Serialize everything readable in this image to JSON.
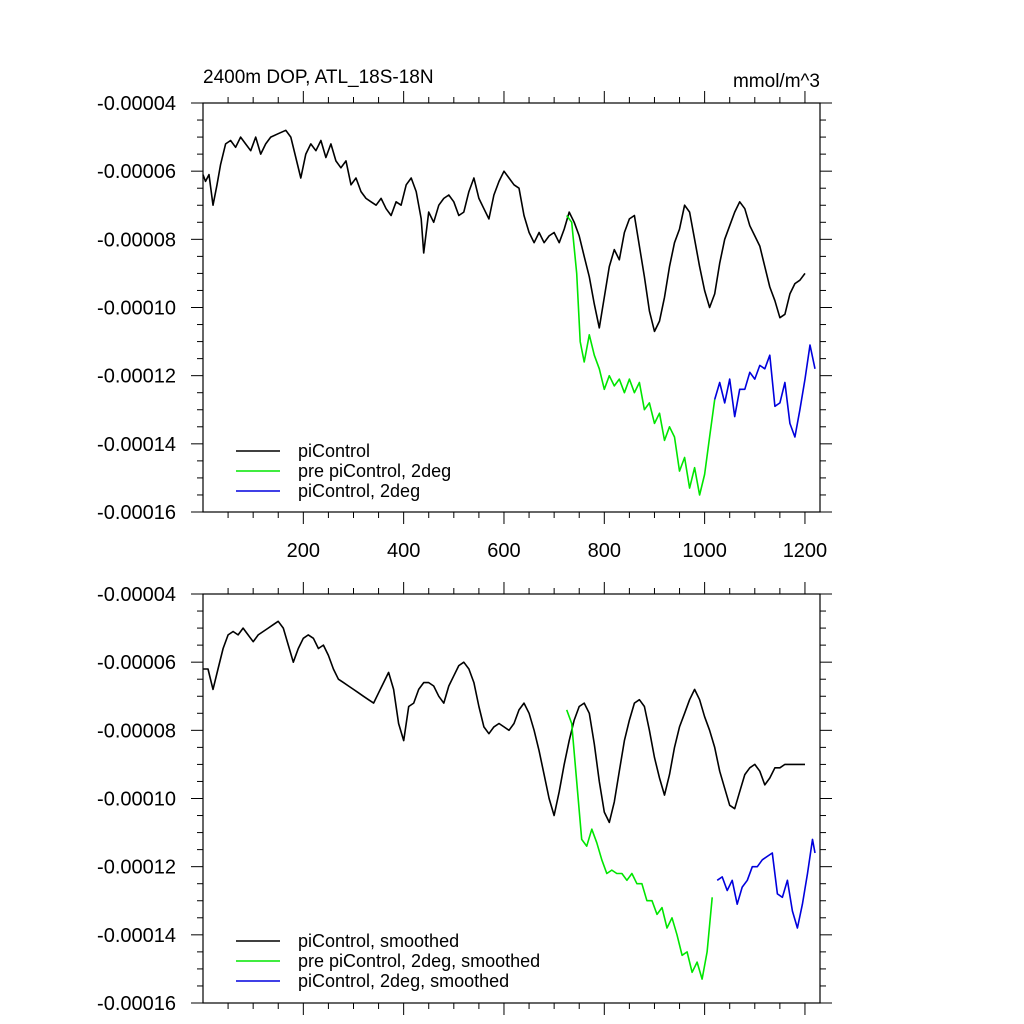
{
  "chart_data": [
    {
      "type": "line",
      "title_left": "2400m DOP, ATL_18S-18N",
      "title_right": "mmol/m^3",
      "xlim": [
        0,
        1230
      ],
      "ylim": [
        -0.00016,
        -4e-05
      ],
      "xticks": [
        200,
        400,
        600,
        800,
        1000,
        1200
      ],
      "xtick_labels": [
        "200",
        "400",
        "600",
        "800",
        "1000",
        "1200"
      ],
      "yticks": [
        -4e-05,
        -6e-05,
        -8e-05,
        -0.0001,
        -0.00012,
        -0.00014,
        -0.00016
      ],
      "ytick_labels": [
        "-0.00004",
        "-0.00006",
        "-0.00008",
        "-0.00010",
        "-0.00012",
        "-0.00014",
        "-0.00016"
      ],
      "legend_position": "bottom-left",
      "series": [
        {
          "name": "piControl",
          "color": "#000000",
          "x": [
            0,
            5,
            12,
            20,
            28,
            35,
            45,
            55,
            65,
            75,
            85,
            95,
            105,
            115,
            125,
            135,
            150,
            165,
            175,
            185,
            195,
            205,
            215,
            225,
            235,
            245,
            255,
            265,
            275,
            285,
            295,
            305,
            315,
            325,
            335,
            345,
            355,
            365,
            375,
            385,
            395,
            405,
            415,
            425,
            435,
            440,
            450,
            460,
            470,
            480,
            490,
            500,
            510,
            520,
            530,
            540,
            550,
            560,
            570,
            580,
            590,
            600,
            610,
            620,
            630,
            640,
            650,
            660,
            670,
            680,
            690,
            700,
            710,
            720,
            730,
            740,
            750,
            760,
            770,
            780,
            790,
            800,
            810,
            820,
            830,
            840,
            850,
            860,
            870,
            880,
            890,
            900,
            910,
            920,
            930,
            940,
            950,
            960,
            970,
            980,
            990,
            1000,
            1010,
            1020,
            1030,
            1040,
            1050,
            1060,
            1070,
            1080,
            1090,
            1100,
            1110,
            1120,
            1130,
            1140,
            1150,
            1160,
            1170,
            1180,
            1190,
            1200
          ],
          "values": [
            -6.1e-05,
            -6.3e-05,
            -6.1e-05,
            -7e-05,
            -6.4e-05,
            -5.8e-05,
            -5.2e-05,
            -5.1e-05,
            -5.3e-05,
            -5e-05,
            -5.2e-05,
            -5.4e-05,
            -5e-05,
            -5.5e-05,
            -5.2e-05,
            -5e-05,
            -4.9e-05,
            -4.8e-05,
            -5e-05,
            -5.6e-05,
            -6.2e-05,
            -5.5e-05,
            -5.2e-05,
            -5.4e-05,
            -5.1e-05,
            -5.6e-05,
            -5.2e-05,
            -5.7e-05,
            -5.9e-05,
            -5.7e-05,
            -6.4e-05,
            -6.2e-05,
            -6.6e-05,
            -6.8e-05,
            -6.9e-05,
            -7e-05,
            -6.8e-05,
            -7.1e-05,
            -7.3e-05,
            -6.9e-05,
            -7e-05,
            -6.4e-05,
            -6.2e-05,
            -6.6e-05,
            -7.4e-05,
            -8.4e-05,
            -7.2e-05,
            -7.5e-05,
            -7e-05,
            -6.8e-05,
            -6.7e-05,
            -6.9e-05,
            -7.3e-05,
            -7.2e-05,
            -6.6e-05,
            -6.2e-05,
            -6.8e-05,
            -7.1e-05,
            -7.4e-05,
            -6.7e-05,
            -6.3e-05,
            -6e-05,
            -6.2e-05,
            -6.4e-05,
            -6.5e-05,
            -7.3e-05,
            -7.8e-05,
            -8.1e-05,
            -7.8e-05,
            -8.1e-05,
            -7.9e-05,
            -7.8e-05,
            -8.1e-05,
            -7.7e-05,
            -7.2e-05,
            -7.5e-05,
            -7.9e-05,
            -8.5e-05,
            -9.1e-05,
            -9.9e-05,
            -0.000106,
            -9.7e-05,
            -8.8e-05,
            -8.3e-05,
            -8.6e-05,
            -7.8e-05,
            -7.4e-05,
            -7.3e-05,
            -8.2e-05,
            -9.1e-05,
            -0.000101,
            -0.000107,
            -0.000104,
            -9.7e-05,
            -8.8e-05,
            -8.1e-05,
            -7.7e-05,
            -7e-05,
            -7.2e-05,
            -8e-05,
            -8.8e-05,
            -9.5e-05,
            -0.0001,
            -9.6e-05,
            -8.7e-05,
            -8e-05,
            -7.6e-05,
            -7.2e-05,
            -6.9e-05,
            -7.1e-05,
            -7.6e-05,
            -7.9e-05,
            -8.2e-05,
            -8.8e-05,
            -9.4e-05,
            -9.8e-05,
            -0.000103,
            -0.000102,
            -9.6e-05,
            -9.3e-05,
            -9.2e-05,
            -9e-05
          ]
        },
        {
          "name": "pre piControl, 2deg",
          "color": "#00e600",
          "x": [
            725,
            735,
            745,
            752,
            760,
            770,
            780,
            790,
            800,
            810,
            820,
            830,
            840,
            850,
            860,
            870,
            880,
            890,
            900,
            910,
            920,
            930,
            940,
            950,
            960,
            970,
            980,
            990,
            1000,
            1010,
            1020
          ],
          "values": [
            -7.3e-05,
            -7.5e-05,
            -9e-05,
            -0.00011,
            -0.000116,
            -0.000108,
            -0.000114,
            -0.000118,
            -0.000124,
            -0.00012,
            -0.000123,
            -0.000121,
            -0.000125,
            -0.000121,
            -0.000125,
            -0.000122,
            -0.00013,
            -0.000128,
            -0.000134,
            -0.000131,
            -0.000139,
            -0.000135,
            -0.000138,
            -0.000148,
            -0.000144,
            -0.000153,
            -0.000147,
            -0.000155,
            -0.000149,
            -0.000138,
            -0.000127
          ]
        },
        {
          "name": "piControl, 2deg",
          "color": "#0000dd",
          "x": [
            1020,
            1030,
            1040,
            1050,
            1060,
            1070,
            1080,
            1090,
            1100,
            1110,
            1120,
            1130,
            1140,
            1150,
            1160,
            1170,
            1180,
            1190,
            1200,
            1210,
            1220
          ],
          "values": [
            -0.000127,
            -0.000122,
            -0.000128,
            -0.000121,
            -0.000132,
            -0.000124,
            -0.000124,
            -0.000119,
            -0.000121,
            -0.000117,
            -0.000118,
            -0.000114,
            -0.000129,
            -0.000128,
            -0.000122,
            -0.000134,
            -0.000138,
            -0.00013,
            -0.000121,
            -0.000111,
            -0.000118
          ]
        }
      ]
    },
    {
      "type": "line",
      "xlim": [
        0,
        1230
      ],
      "ylim": [
        -0.00016,
        -4e-05
      ],
      "xticks": [
        200,
        400,
        600,
        800,
        1000,
        1200
      ],
      "yticks": [
        -4e-05,
        -6e-05,
        -8e-05,
        -0.0001,
        -0.00012,
        -0.00014,
        -0.00016
      ],
      "ytick_labels": [
        "-0.00004",
        "-0.00006",
        "-0.00008",
        "-0.00010",
        "-0.00012",
        "-0.00014",
        "-0.00016"
      ],
      "legend_position": "bottom-left",
      "series": [
        {
          "name": "piControl, smoothed",
          "color": "#000000",
          "x": [
            0,
            10,
            20,
            30,
            40,
            50,
            60,
            70,
            80,
            90,
            100,
            110,
            120,
            130,
            140,
            150,
            160,
            170,
            180,
            190,
            200,
            210,
            220,
            230,
            240,
            250,
            260,
            270,
            280,
            290,
            300,
            310,
            320,
            330,
            340,
            350,
            360,
            370,
            380,
            390,
            400,
            410,
            420,
            430,
            440,
            450,
            460,
            470,
            480,
            490,
            500,
            510,
            520,
            530,
            540,
            550,
            560,
            570,
            580,
            590,
            600,
            610,
            620,
            630,
            640,
            650,
            660,
            670,
            680,
            690,
            700,
            710,
            720,
            730,
            740,
            750,
            760,
            770,
            780,
            790,
            800,
            810,
            820,
            830,
            840,
            850,
            860,
            870,
            880,
            890,
            900,
            910,
            920,
            930,
            940,
            950,
            960,
            970,
            980,
            990,
            1000,
            1010,
            1020,
            1030,
            1040,
            1050,
            1060,
            1070,
            1080,
            1090,
            1100,
            1110,
            1120,
            1130,
            1140,
            1150,
            1160,
            1170,
            1180,
            1190,
            1200
          ],
          "values": [
            -6.2e-05,
            -6.2e-05,
            -6.8e-05,
            -6.2e-05,
            -5.6e-05,
            -5.2e-05,
            -5.1e-05,
            -5.2e-05,
            -5e-05,
            -5.2e-05,
            -5.4e-05,
            -5.2e-05,
            -5.1e-05,
            -5e-05,
            -4.9e-05,
            -4.8e-05,
            -5e-05,
            -5.5e-05,
            -6e-05,
            -5.6e-05,
            -5.3e-05,
            -5.2e-05,
            -5.3e-05,
            -5.6e-05,
            -5.5e-05,
            -5.8e-05,
            -6.2e-05,
            -6.5e-05,
            -6.6e-05,
            -6.7e-05,
            -6.8e-05,
            -6.9e-05,
            -7e-05,
            -7.1e-05,
            -7.2e-05,
            -6.9e-05,
            -6.6e-05,
            -6.3e-05,
            -6.8e-05,
            -7.8e-05,
            -8.3e-05,
            -7.3e-05,
            -7.2e-05,
            -6.8e-05,
            -6.6e-05,
            -6.6e-05,
            -6.7e-05,
            -7e-05,
            -7.2e-05,
            -6.7e-05,
            -6.4e-05,
            -6.1e-05,
            -6e-05,
            -6.2e-05,
            -6.6e-05,
            -7.3e-05,
            -7.9e-05,
            -8.1e-05,
            -7.9e-05,
            -7.8e-05,
            -7.9e-05,
            -8e-05,
            -7.8e-05,
            -7.4e-05,
            -7.2e-05,
            -7.5e-05,
            -8e-05,
            -8.6e-05,
            -9.3e-05,
            -0.0001,
            -0.000105,
            -9.8e-05,
            -9e-05,
            -8.3e-05,
            -7.7e-05,
            -7.3e-05,
            -7.2e-05,
            -7.5e-05,
            -8.4e-05,
            -9.5e-05,
            -0.000104,
            -0.000107,
            -0.000101,
            -9.2e-05,
            -8.3e-05,
            -7.7e-05,
            -7.2e-05,
            -7.1e-05,
            -7.3e-05,
            -8e-05,
            -8.8e-05,
            -9.4e-05,
            -9.9e-05,
            -9.3e-05,
            -8.5e-05,
            -7.9e-05,
            -7.5e-05,
            -7.1e-05,
            -6.8e-05,
            -7.1e-05,
            -7.6e-05,
            -8e-05,
            -8.5e-05,
            -9.2e-05,
            -9.7e-05,
            -0.000102,
            -0.000103,
            -9.8e-05,
            -9.3e-05,
            -9.1e-05,
            -9e-05,
            -9.2e-05,
            -9.6e-05,
            -9.4e-05,
            -9.1e-05,
            -9.1e-05,
            -9e-05,
            -9e-05,
            -9e-05,
            -9e-05,
            -9e-05
          ]
        },
        {
          "name": "pre piControl, 2deg, smoothed",
          "color": "#00e600",
          "x": [
            725,
            735,
            745,
            755,
            765,
            775,
            785,
            795,
            805,
            815,
            825,
            835,
            845,
            855,
            865,
            875,
            885,
            895,
            905,
            915,
            925,
            935,
            945,
            955,
            965,
            975,
            985,
            995,
            1005,
            1015
          ],
          "values": [
            -7.4e-05,
            -7.8e-05,
            -9.5e-05,
            -0.000112,
            -0.000114,
            -0.000109,
            -0.000113,
            -0.000118,
            -0.000122,
            -0.000121,
            -0.000122,
            -0.000122,
            -0.000124,
            -0.000122,
            -0.000125,
            -0.000125,
            -0.00013,
            -0.00013,
            -0.000134,
            -0.000132,
            -0.000138,
            -0.000135,
            -0.00014,
            -0.000146,
            -0.000145,
            -0.000151,
            -0.000148,
            -0.000153,
            -0.000145,
            -0.000129
          ]
        },
        {
          "name": "piControl, 2deg, smoothed",
          "color": "#0000dd",
          "x": [
            1025,
            1035,
            1045,
            1055,
            1065,
            1075,
            1085,
            1095,
            1105,
            1115,
            1125,
            1135,
            1145,
            1155,
            1165,
            1175,
            1185,
            1195,
            1205,
            1215,
            1220
          ],
          "values": [
            -0.000124,
            -0.000123,
            -0.000127,
            -0.000124,
            -0.000131,
            -0.000126,
            -0.000124,
            -0.00012,
            -0.00012,
            -0.000118,
            -0.000117,
            -0.000116,
            -0.000128,
            -0.000129,
            -0.000124,
            -0.000133,
            -0.000138,
            -0.000131,
            -0.000122,
            -0.000112,
            -0.000116
          ]
        }
      ]
    }
  ]
}
